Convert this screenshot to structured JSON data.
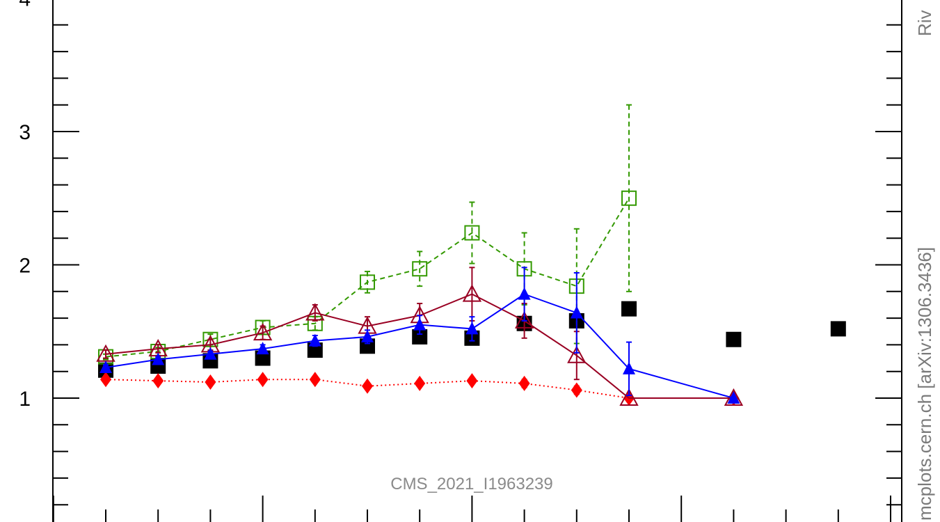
{
  "chart_data": {
    "type": "line",
    "annotation": "CMS_2021_I1963239",
    "side_texts": [
      "Riv",
      "mcplots.cern.ch [arXiv:1306.3436]"
    ],
    "x": [
      1,
      2,
      3,
      4,
      5,
      6,
      7,
      8,
      9,
      10,
      11,
      12,
      13,
      14,
      15
    ],
    "ylim": [
      0.1,
      4.0
    ],
    "yticks": [
      1,
      2,
      3,
      4
    ],
    "series": [
      {
        "name": "",
        "style": "points",
        "marker": "square-filled",
        "color": "#000000",
        "values": [
          1.21,
          1.24,
          1.28,
          1.3,
          1.36,
          1.39,
          1.46,
          1.45,
          1.56,
          1.58,
          1.67,
          null,
          1.44,
          null,
          1.52
        ]
      },
      {
        "name": "",
        "style": "dotted",
        "marker": "diamond-filled",
        "color": "#ff0000",
        "values": [
          1.14,
          1.13,
          1.12,
          1.14,
          1.14,
          1.09,
          1.11,
          1.13,
          1.11,
          1.06,
          1.0,
          null,
          1.0,
          null,
          null
        ],
        "errors": [
          0.02,
          0.02,
          0.02,
          0.02,
          0.02,
          0.02,
          0.02,
          0.02,
          0.03,
          0.03,
          0.0,
          null,
          0.0,
          null,
          null
        ]
      },
      {
        "name": "",
        "style": "dashed",
        "marker": "square-open",
        "color": "#339900",
        "values": [
          1.31,
          1.35,
          1.44,
          1.53,
          1.56,
          1.87,
          1.97,
          2.24,
          1.97,
          1.84,
          2.5,
          null,
          null,
          null,
          null
        ],
        "errors": [
          0.02,
          0.03,
          0.04,
          0.05,
          0.05,
          0.08,
          0.13,
          0.23,
          0.27,
          0.43,
          0.7,
          null,
          null,
          null,
          null
        ]
      },
      {
        "name": "",
        "style": "solid",
        "marker": "triangle-open",
        "color": "#990022",
        "values": [
          1.33,
          1.37,
          1.4,
          1.49,
          1.64,
          1.54,
          1.62,
          1.78,
          1.58,
          1.32,
          1.0,
          null,
          1.0,
          null,
          null
        ],
        "errors": [
          0.03,
          0.03,
          0.04,
          0.05,
          0.06,
          0.07,
          0.09,
          0.2,
          0.13,
          0.18,
          0.0,
          null,
          0.0,
          null,
          null
        ]
      },
      {
        "name": "",
        "style": "solid",
        "marker": "triangle-filled",
        "color": "#0000ff",
        "values": [
          1.23,
          1.29,
          1.33,
          1.37,
          1.43,
          1.46,
          1.55,
          1.52,
          1.78,
          1.64,
          1.22,
          null,
          1.0,
          null,
          null
        ],
        "errors": [
          0.02,
          0.02,
          0.02,
          0.03,
          0.04,
          0.05,
          0.07,
          0.09,
          0.2,
          0.3,
          0.2,
          null,
          0.0,
          null,
          null
        ]
      }
    ],
    "grid": false
  }
}
